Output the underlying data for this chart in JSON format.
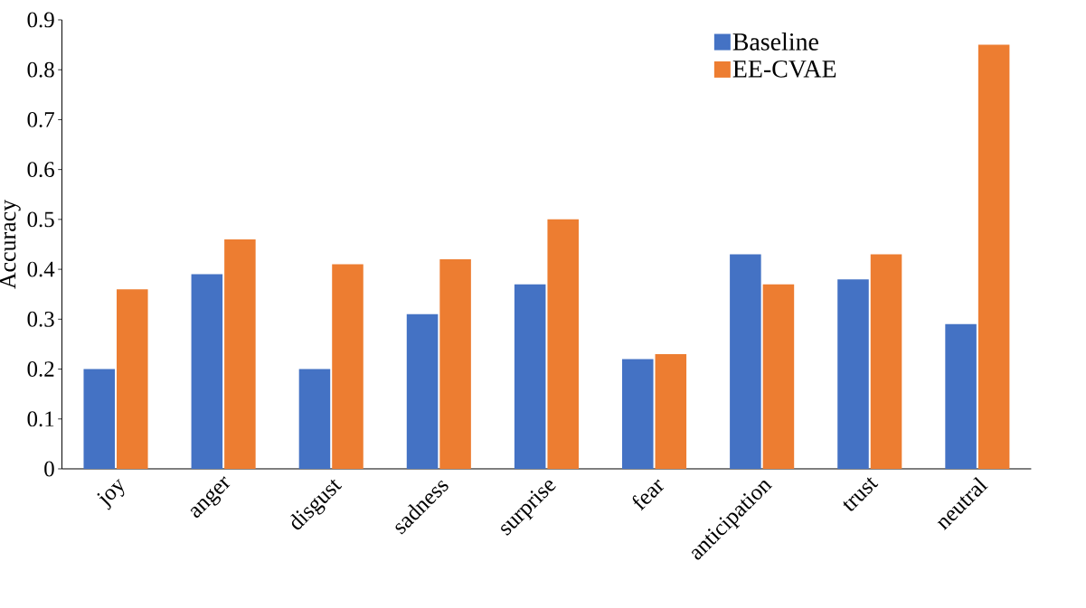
{
  "chart_data": {
    "type": "bar",
    "ylabel": "Accuracy",
    "categories": [
      "joy",
      "anger",
      "disgust",
      "sadness",
      "surprise",
      "fear",
      "anticipation",
      "trust",
      "neutral"
    ],
    "series": [
      {
        "name": "Baseline",
        "color": "#4472c4",
        "values": [
          0.2,
          0.39,
          0.2,
          0.31,
          0.37,
          0.22,
          0.43,
          0.38,
          0.29
        ]
      },
      {
        "name": "EE-CVAE",
        "color": "#ed7d31",
        "values": [
          0.36,
          0.46,
          0.41,
          0.42,
          0.5,
          0.23,
          0.37,
          0.43,
          0.85
        ]
      }
    ],
    "ylim": [
      0,
      0.9
    ],
    "yticks": [
      0,
      0.1,
      0.2,
      0.3,
      0.4,
      0.5,
      0.6,
      0.7,
      0.8,
      0.9
    ],
    "legend": "top right"
  }
}
